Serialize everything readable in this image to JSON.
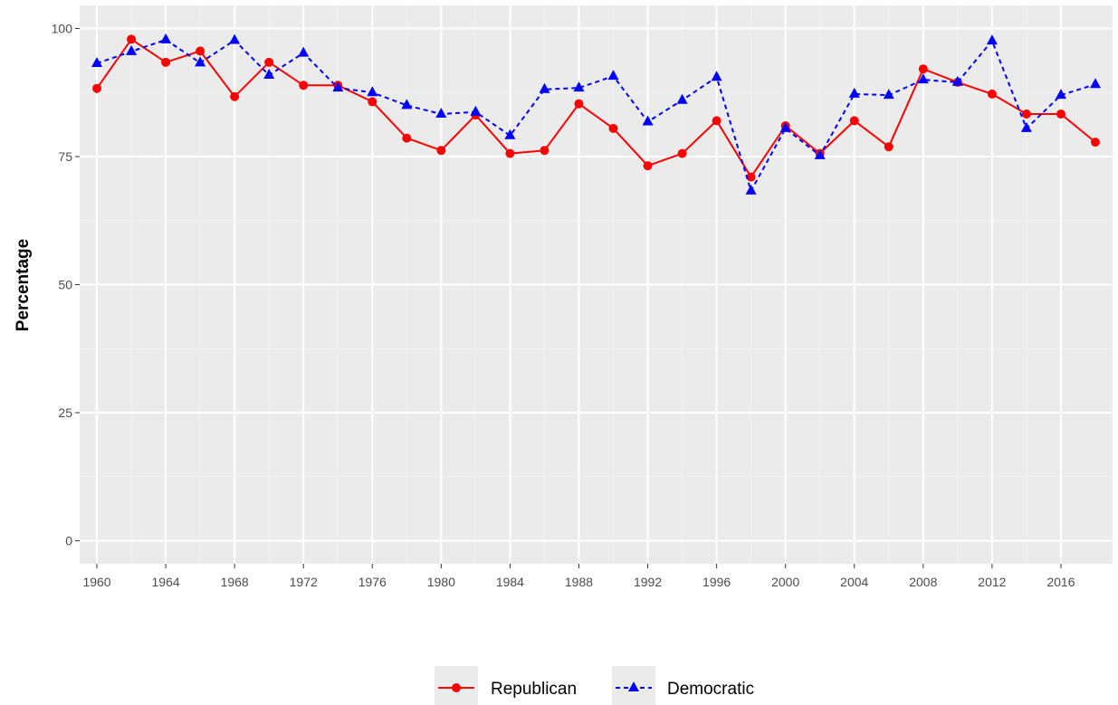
{
  "chart_data": {
    "type": "line",
    "title": "",
    "xlabel": "",
    "ylabel": "Percentage",
    "x": [
      1960,
      1962,
      1964,
      1966,
      1968,
      1970,
      1972,
      1974,
      1976,
      1978,
      1980,
      1982,
      1984,
      1986,
      1988,
      1990,
      1992,
      1994,
      1996,
      1998,
      2000,
      2002,
      2004,
      2006,
      2008,
      2010,
      2012,
      2014,
      2016,
      2018
    ],
    "x_ticks": [
      1960,
      1964,
      1968,
      1972,
      1976,
      1980,
      1984,
      1988,
      1992,
      1996,
      2000,
      2004,
      2008,
      2012,
      2016
    ],
    "y_ticks": [
      0,
      25,
      50,
      75,
      100
    ],
    "xlim": [
      1959,
      2019
    ],
    "ylim": [
      -4.5,
      104.5
    ],
    "grid": true,
    "legend_position": "bottom",
    "series": [
      {
        "name": "Republican",
        "color": "#ff0000",
        "marker": "circle",
        "line_style": "solid",
        "values": [
          88.3,
          97.9,
          93.4,
          95.6,
          86.7,
          93.4,
          88.9,
          88.9,
          85.7,
          78.6,
          76.2,
          83.1,
          75.6,
          76.2,
          85.3,
          80.5,
          73.2,
          75.6,
          82.0,
          71.0,
          81.0,
          75.6,
          82.0,
          76.9,
          92.1,
          89.5,
          87.2,
          83.3,
          83.3,
          77.8
        ]
      },
      {
        "name": "Democratic",
        "color": "#0000ff",
        "marker": "triangle",
        "line_style": "dashed",
        "values": [
          93.2,
          95.5,
          97.8,
          93.3,
          97.7,
          90.9,
          95.2,
          88.4,
          87.5,
          85.0,
          83.3,
          83.7,
          79.1,
          88.1,
          88.4,
          90.7,
          81.8,
          86.0,
          90.5,
          68.3,
          80.5,
          75.2,
          87.2,
          87.0,
          90.0,
          89.5,
          97.6,
          80.5,
          87.0,
          89.1
        ]
      }
    ]
  }
}
